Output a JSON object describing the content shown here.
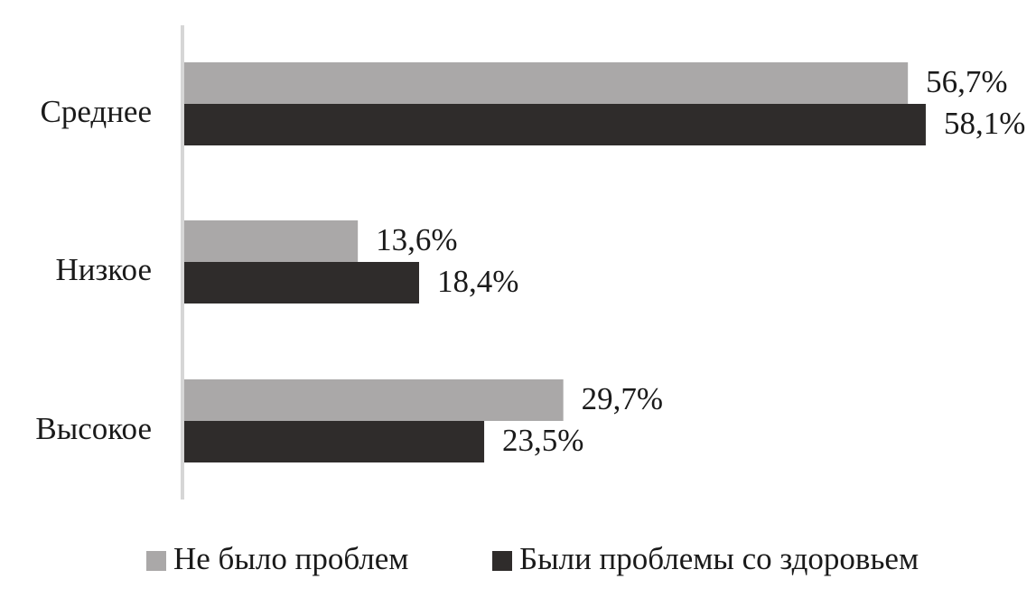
{
  "chart_data": {
    "type": "bar",
    "orientation": "horizontal",
    "categories": [
      "Среднее",
      "Низкое",
      "Высокое"
    ],
    "series": [
      {
        "name": "Не было проблем",
        "values": [
          56.7,
          13.6,
          29.7
        ],
        "labels": [
          "56,7%",
          "13,6%",
          "29,7%"
        ],
        "color": "#aaa8a8"
      },
      {
        "name": "Были проблемы со здоровьем",
        "values": [
          58.1,
          18.4,
          23.5
        ],
        "labels": [
          "58,1%",
          "18,4%",
          "23,5%"
        ],
        "color": "#2f2c2b"
      }
    ],
    "xlim": [
      0,
      70
    ],
    "grid": false,
    "legend_position": "bottom"
  }
}
